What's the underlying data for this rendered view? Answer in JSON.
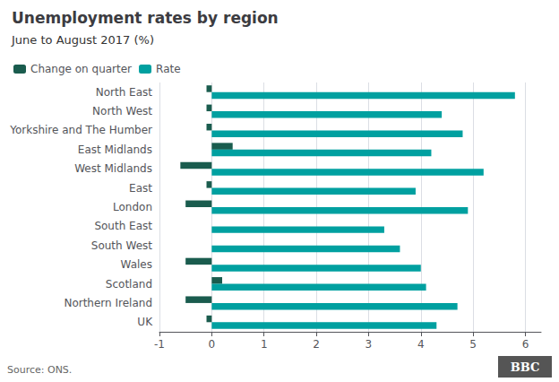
{
  "chart_data": {
    "type": "bar",
    "orientation": "horizontal",
    "title": "Unemployment rates by region",
    "subtitle": "June to August 2017 (%)",
    "source": "Source: ONS.",
    "annotations": [
      "BBC"
    ],
    "categories": [
      "North East",
      "North West",
      "Yorkshire and The Humber",
      "East Midlands",
      "West Midlands",
      "East",
      "London",
      "South East",
      "South West",
      "Wales",
      "Scotland",
      "Northern Ireland",
      "UK"
    ],
    "series": [
      {
        "name": "Change on quarter",
        "color": "#1a5c4e",
        "values": [
          -0.1,
          -0.1,
          -0.1,
          0.4,
          -0.6,
          -0.1,
          -0.5,
          0.0,
          0.0,
          -0.5,
          0.2,
          -0.5,
          -0.1
        ]
      },
      {
        "name": "Rate",
        "color": "#00a0a0",
        "values": [
          5.8,
          4.4,
          4.8,
          4.2,
          5.2,
          3.9,
          4.9,
          3.3,
          3.6,
          4.0,
          4.1,
          4.7,
          4.3
        ]
      }
    ],
    "xlim": [
      -1.0,
      6.3
    ],
    "xticks": [
      -1,
      0,
      1,
      2,
      3,
      4,
      5,
      6
    ],
    "grid": true,
    "legend": "upper left"
  }
}
